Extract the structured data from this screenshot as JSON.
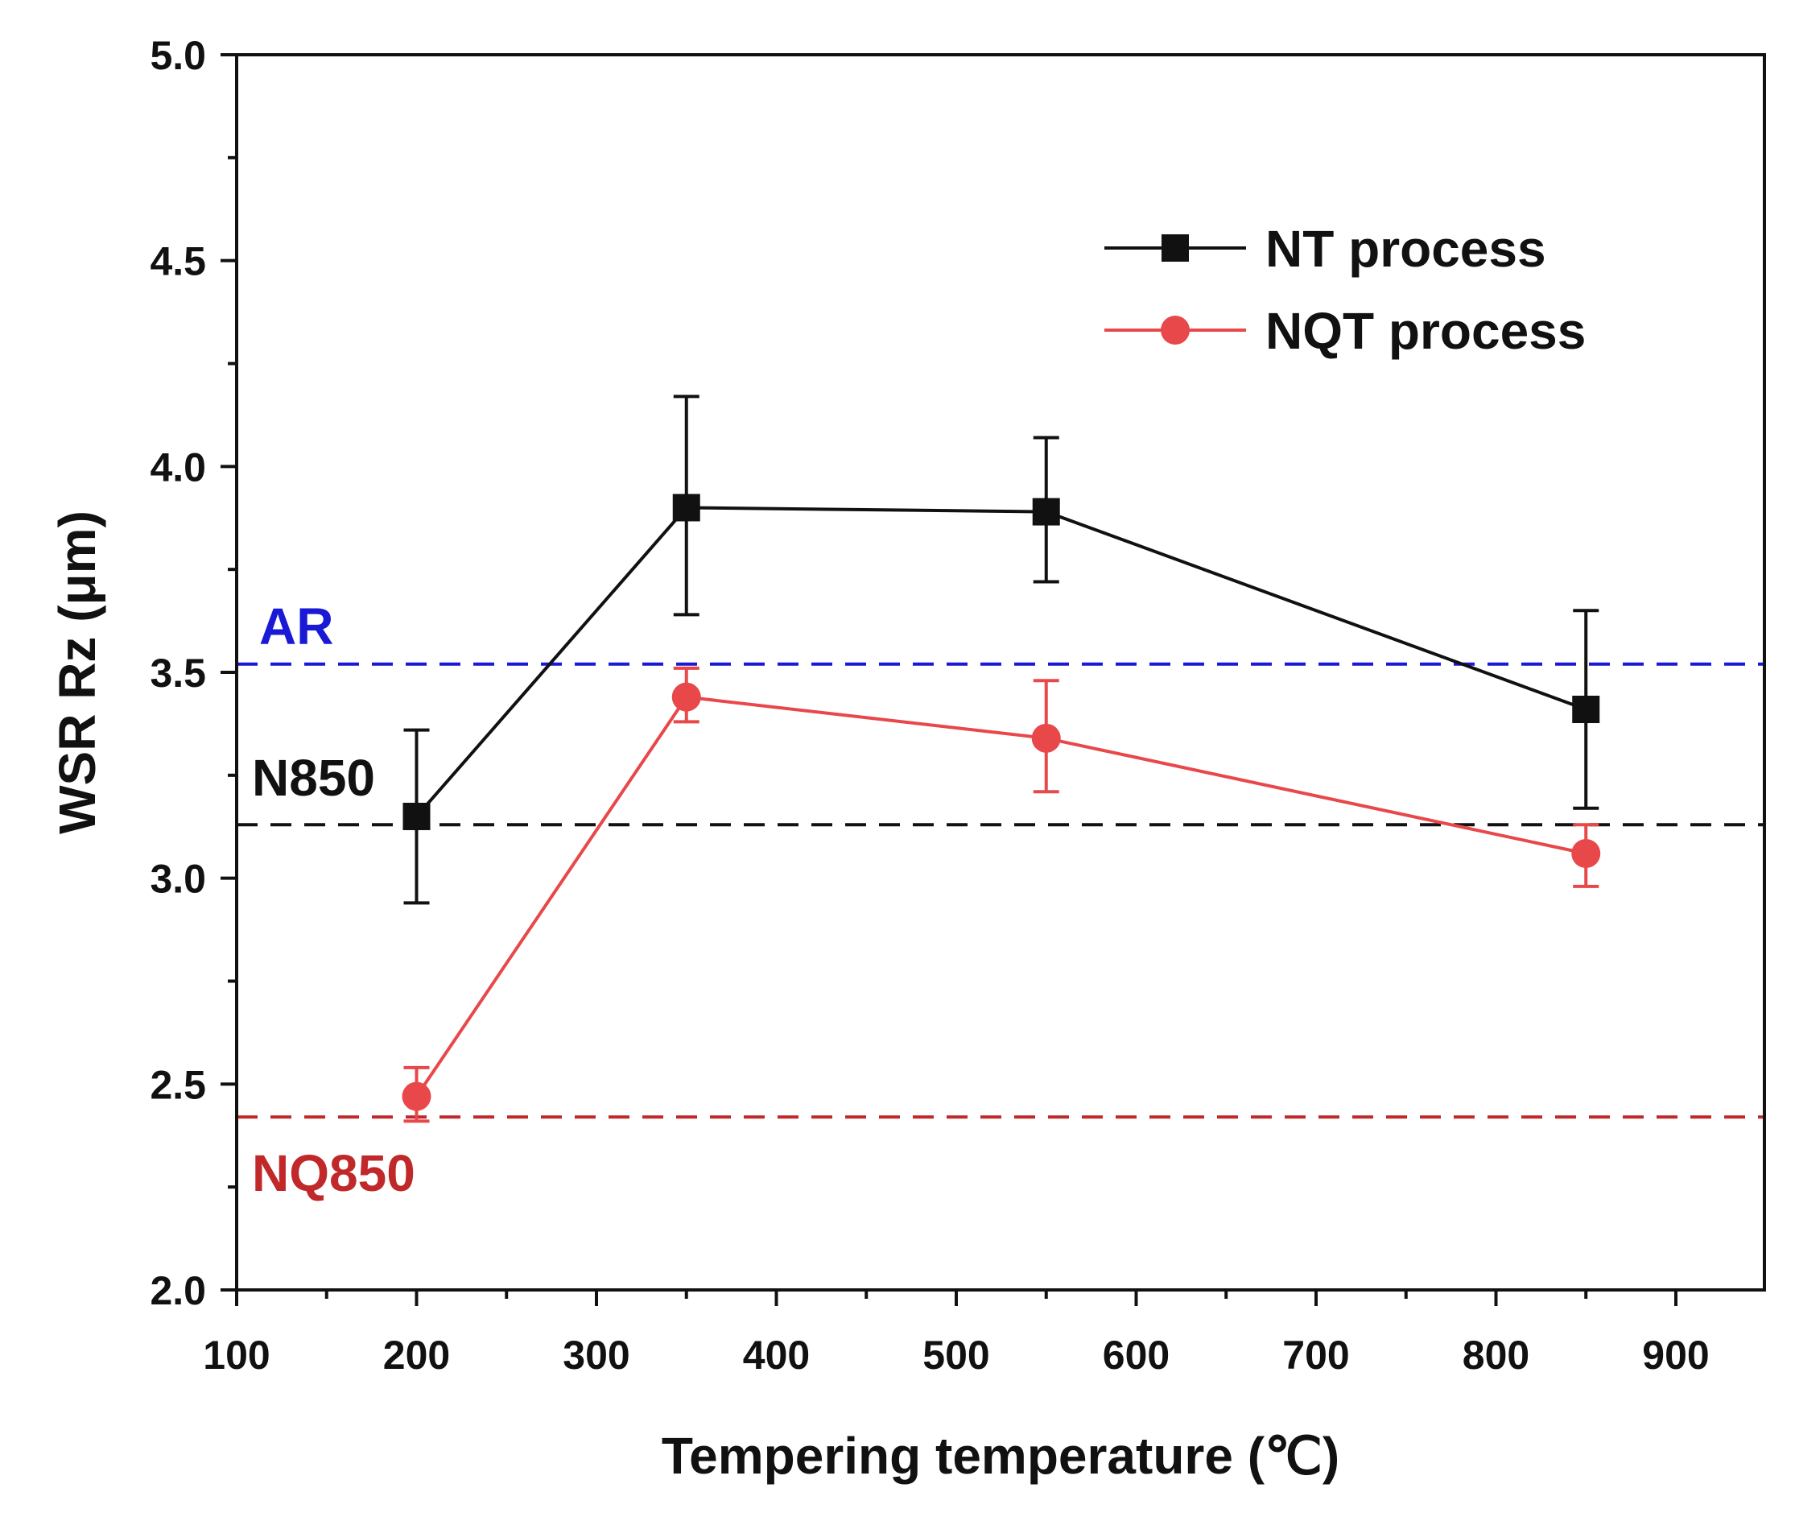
{
  "chart_data": {
    "type": "line",
    "title": "",
    "xlabel": "Tempering temperature (℃)",
    "ylabel": "WSR Rz (μm)",
    "xlim": [
      100,
      950
    ],
    "ylim": [
      2.0,
      5.0
    ],
    "x_ticks": [
      100,
      200,
      300,
      400,
      500,
      600,
      700,
      800,
      900
    ],
    "x_tick_labels": [
      "100",
      "200",
      "300",
      "400",
      "500",
      "600",
      "700",
      "800",
      "900"
    ],
    "y_ticks": [
      2.0,
      2.5,
      3.0,
      3.5,
      4.0,
      4.5,
      5.0
    ],
    "y_tick_labels": [
      "2.0",
      "2.5",
      "3.0",
      "3.5",
      "4.0",
      "4.5",
      "5.0"
    ],
    "grid": false,
    "legend_position": "top-right",
    "series": [
      {
        "name": "NT process",
        "color": "#111111",
        "marker": "square",
        "x": [
          200,
          350,
          550,
          850
        ],
        "y": [
          3.15,
          3.9,
          3.89,
          3.41
        ],
        "err_low": [
          2.94,
          3.64,
          3.72,
          3.17
        ],
        "err_high": [
          3.36,
          4.17,
          4.07,
          3.65
        ]
      },
      {
        "name": "NQT process",
        "color": "#e8484a",
        "marker": "circle",
        "x": [
          200,
          350,
          550,
          850
        ],
        "y": [
          2.47,
          3.44,
          3.34,
          3.06
        ],
        "err_low": [
          2.41,
          3.38,
          3.21,
          2.98
        ],
        "err_high": [
          2.54,
          3.51,
          3.48,
          3.13
        ]
      }
    ],
    "reference_lines": [
      {
        "label": "AR",
        "y": 3.52,
        "color": "#1a1ad6"
      },
      {
        "label": "N850",
        "y": 3.13,
        "color": "#111111"
      },
      {
        "label": "NQ850",
        "y": 2.42,
        "color": "#c0282a"
      }
    ]
  }
}
